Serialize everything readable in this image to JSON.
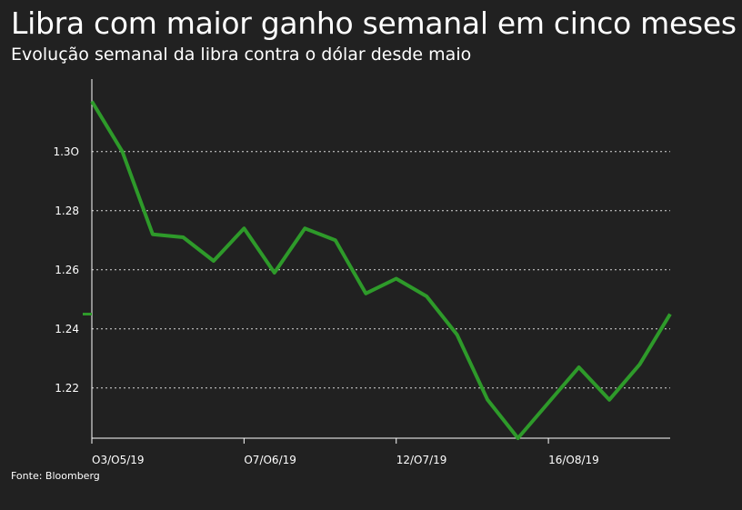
{
  "title": "Libra com maior ganho semanal em cinco meses",
  "subtitle": "Evolução semanal da libra contra o dólar desde maio",
  "source": "Fonte: Bloomberg",
  "colors": {
    "background": "#212121",
    "line": "#2e9a2a",
    "grid": "#d9d9d9",
    "axis": "#ffffff"
  },
  "chart_data": {
    "type": "line",
    "title": "Libra com maior ganho semanal em cinco meses",
    "subtitle": "Evolução semanal da libra contra o dólar desde maio",
    "xlabel": "",
    "ylabel": "",
    "ylim": [
      1.203,
      1.319
    ],
    "grid": true,
    "y_ticks": [
      1.22,
      1.24,
      1.26,
      1.28,
      1.3
    ],
    "y_tick_labels": [
      "1.22",
      "1.24",
      "1.26",
      "1.28",
      "1.3O"
    ],
    "x_tick_labels": [
      "O3/O5/19",
      "O7/O6/19",
      "12/O7/19",
      "16/O8/19"
    ],
    "x_tick_index": [
      0,
      5,
      10,
      15
    ],
    "x": [
      0,
      1,
      2,
      3,
      4,
      5,
      6,
      7,
      8,
      9,
      10,
      11,
      12,
      13,
      14,
      15,
      16,
      17,
      18,
      19
    ],
    "series": [
      {
        "values": [
          1.317,
          1.3,
          1.272,
          1.271,
          1.263,
          1.274,
          1.259,
          1.274,
          1.27,
          1.252,
          1.257,
          1.251,
          1.238,
          1.216,
          1.203,
          1.215,
          1.227,
          1.216,
          1.228,
          1.245
        ]
      }
    ],
    "last_value_marker": 1.245
  }
}
